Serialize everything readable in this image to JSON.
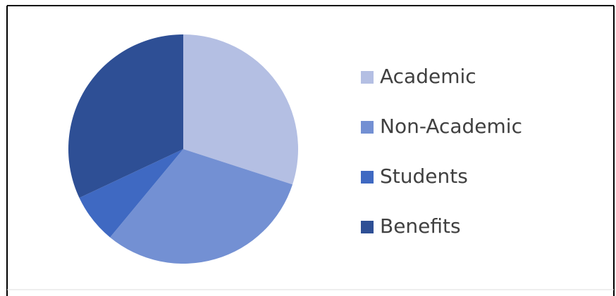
{
  "chart_data": {
    "type": "pie",
    "categories": [
      "Academic",
      "Non-Academic",
      "Students",
      "Benefits"
    ],
    "values": [
      30,
      31,
      7,
      32
    ],
    "colors": [
      "#b4bfe3",
      "#7390d3",
      "#3f69c2",
      "#2e4f95"
    ],
    "legend": "right"
  }
}
